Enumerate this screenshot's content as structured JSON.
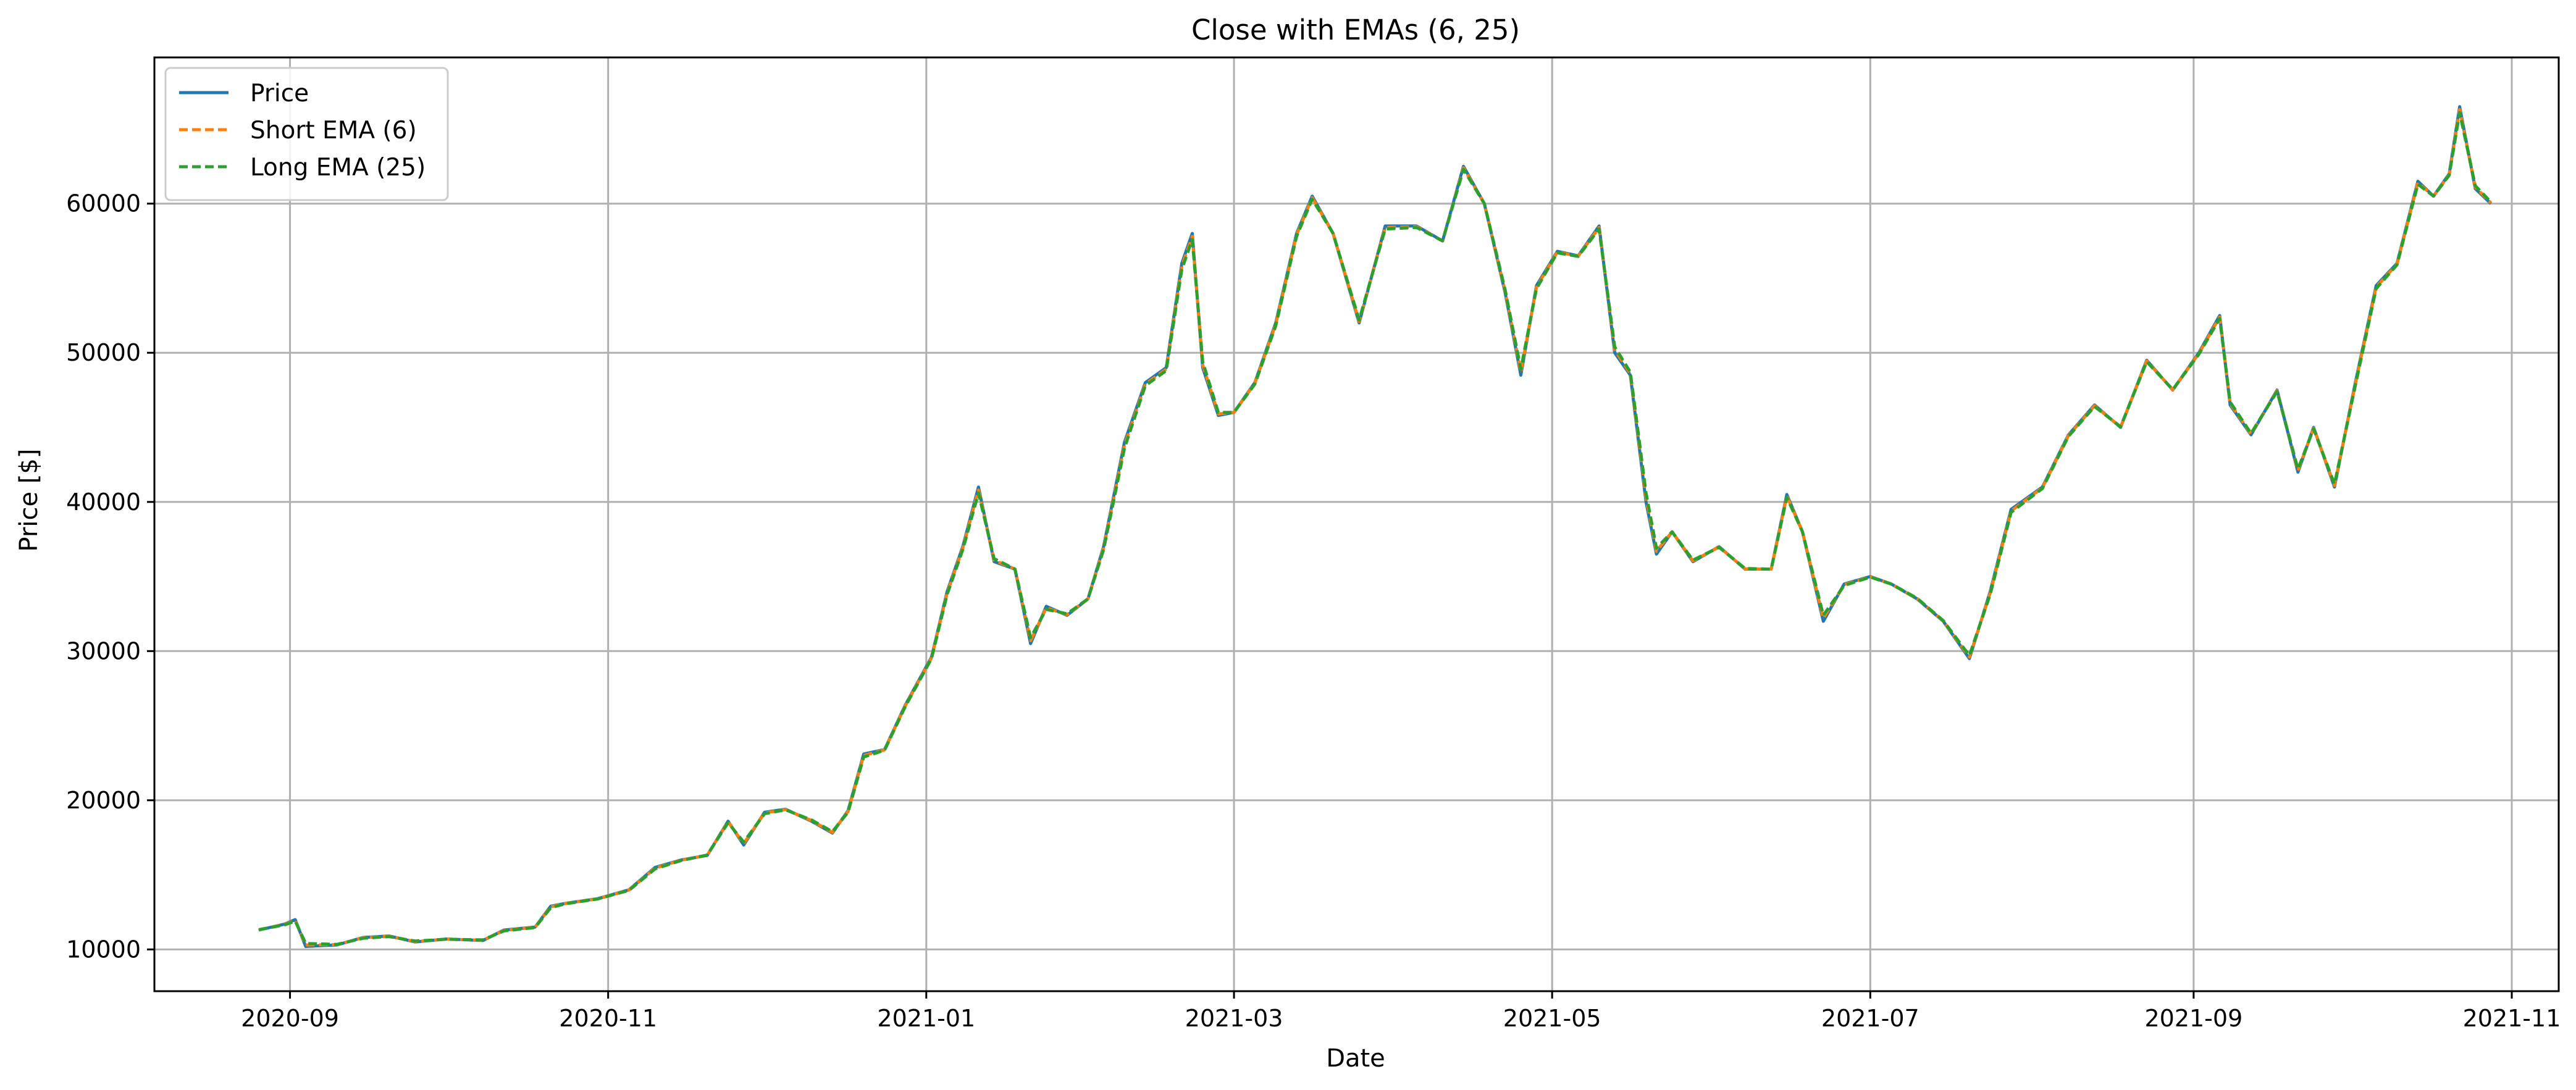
{
  "chart_data": {
    "type": "line",
    "title": "Close with EMAs (6, 25)",
    "xlabel": "Date",
    "ylabel": "Price [$]",
    "x_type": "date",
    "xlim": [
      "2020-08-06",
      "2021-11-10"
    ],
    "ylim": [
      7200,
      69800
    ],
    "xticks": [
      "2020-09-01",
      "2020-11-01",
      "2021-01-01",
      "2021-03-01",
      "2021-05-01",
      "2021-07-01",
      "2021-09-01",
      "2021-11-01"
    ],
    "xtick_labels": [
      "2020-09",
      "2020-11",
      "2021-01",
      "2021-03",
      "2021-05",
      "2021-07",
      "2021-09",
      "2021-11"
    ],
    "yticks": [
      10000,
      20000,
      30000,
      40000,
      50000,
      60000
    ],
    "ytick_labels": [
      "10000",
      "20000",
      "30000",
      "40000",
      "50000",
      "60000"
    ],
    "grid": true,
    "legend_position": "top-left",
    "legend": [
      "Price",
      "Short EMA (6)",
      "Long EMA (25)"
    ],
    "x": [
      "2020-08-26",
      "2020-08-31",
      "2020-09-02",
      "2020-09-04",
      "2020-09-10",
      "2020-09-15",
      "2020-09-20",
      "2020-09-25",
      "2020-10-01",
      "2020-10-08",
      "2020-10-12",
      "2020-10-18",
      "2020-10-21",
      "2020-10-24",
      "2020-10-30",
      "2020-11-05",
      "2020-11-10",
      "2020-11-15",
      "2020-11-20",
      "2020-11-24",
      "2020-11-27",
      "2020-12-01",
      "2020-12-05",
      "2020-12-10",
      "2020-12-14",
      "2020-12-17",
      "2020-12-20",
      "2020-12-24",
      "2020-12-28",
      "2021-01-02",
      "2021-01-05",
      "2021-01-08",
      "2021-01-11",
      "2021-01-14",
      "2021-01-18",
      "2021-01-21",
      "2021-01-24",
      "2021-01-28",
      "2021-02-01",
      "2021-02-04",
      "2021-02-08",
      "2021-02-12",
      "2021-02-16",
      "2021-02-19",
      "2021-02-21",
      "2021-02-23",
      "2021-02-26",
      "2021-03-01",
      "2021-03-05",
      "2021-03-09",
      "2021-03-13",
      "2021-03-16",
      "2021-03-20",
      "2021-03-25",
      "2021-03-30",
      "2021-04-05",
      "2021-04-10",
      "2021-04-14",
      "2021-04-18",
      "2021-04-22",
      "2021-04-25",
      "2021-04-28",
      "2021-05-02",
      "2021-05-06",
      "2021-05-10",
      "2021-05-13",
      "2021-05-16",
      "2021-05-19",
      "2021-05-21",
      "2021-05-24",
      "2021-05-28",
      "2021-06-02",
      "2021-06-07",
      "2021-06-12",
      "2021-06-15",
      "2021-06-18",
      "2021-06-22",
      "2021-06-26",
      "2021-07-01",
      "2021-07-05",
      "2021-07-10",
      "2021-07-15",
      "2021-07-20",
      "2021-07-24",
      "2021-07-28",
      "2021-08-03",
      "2021-08-08",
      "2021-08-13",
      "2021-08-18",
      "2021-08-23",
      "2021-08-28",
      "2021-09-02",
      "2021-09-06",
      "2021-09-08",
      "2021-09-12",
      "2021-09-17",
      "2021-09-21",
      "2021-09-24",
      "2021-09-28",
      "2021-10-02",
      "2021-10-06",
      "2021-10-10",
      "2021-10-14",
      "2021-10-17",
      "2021-10-20",
      "2021-10-22",
      "2021-10-25",
      "2021-10-28"
    ],
    "series": [
      {
        "name": "Price",
        "color": "#1f77b4",
        "style": "solid",
        "values": [
          11300,
          11700,
          12000,
          10200,
          10300,
          10800,
          10900,
          10500,
          10700,
          10600,
          11300,
          11500,
          12900,
          13100,
          13400,
          14000,
          15500,
          16000,
          16300,
          18600,
          17000,
          19200,
          19400,
          18600,
          17800,
          19300,
          23100,
          23400,
          26400,
          29600,
          34000,
          37000,
          41000,
          36000,
          35500,
          30500,
          33000,
          32400,
          33500,
          37000,
          44000,
          48000,
          49000,
          56000,
          58000,
          49000,
          45800,
          46000,
          48000,
          52000,
          58000,
          60500,
          58000,
          52000,
          58500,
          58500,
          57500,
          62500,
          60000,
          54000,
          48500,
          54500,
          56800,
          56500,
          58500,
          50000,
          48500,
          40000,
          36500,
          38000,
          36000,
          37000,
          35500,
          35500,
          40500,
          38000,
          32000,
          34500,
          35000,
          34500,
          33500,
          32000,
          29500,
          34000,
          39500,
          41000,
          44500,
          46500,
          45000,
          49500,
          47500,
          50000,
          52500,
          46500,
          44500,
          47500,
          42000,
          45000,
          41000,
          48000,
          54500,
          56000,
          61500,
          60500,
          62000,
          66500,
          61000,
          60000
        ]
      },
      {
        "name": "Short EMA (6)",
        "color": "#ff7f0e",
        "style": "dashed",
        "values": [
          11310,
          11680,
          11950,
          10300,
          10320,
          10780,
          10880,
          10530,
          10690,
          10620,
          11270,
          11490,
          12850,
          13090,
          13390,
          13980,
          15450,
          15980,
          16320,
          18550,
          17100,
          19150,
          19380,
          18640,
          17850,
          19250,
          23000,
          23380,
          26350,
          29550,
          33900,
          36900,
          40800,
          36100,
          35500,
          30700,
          32900,
          32450,
          33500,
          36900,
          43800,
          47900,
          48900,
          55800,
          57800,
          49200,
          45900,
          46000,
          47950,
          51900,
          57900,
          60400,
          58000,
          52100,
          58400,
          58450,
          57500,
          62400,
          60000,
          54100,
          48700,
          54400,
          56750,
          56480,
          58400,
          50200,
          48600,
          40300,
          36700,
          38000,
          36050,
          36980,
          35520,
          35500,
          40400,
          38000,
          32200,
          34450,
          34980,
          34500,
          33520,
          32020,
          29600,
          33900,
          39400,
          40950,
          44450,
          46450,
          45020,
          49450,
          47520,
          49950,
          52400,
          46600,
          44550,
          47450,
          42100,
          44950,
          41100,
          47900,
          54400,
          55950,
          61400,
          60500,
          61950,
          66300,
          61100,
          60050
        ]
      },
      {
        "name": "Long EMA (25)",
        "color": "#2ca02c",
        "style": "dashed",
        "values": [
          11320,
          11650,
          11900,
          10400,
          10340,
          10750,
          10860,
          10560,
          10680,
          10640,
          11240,
          11470,
          12800,
          13070,
          13380,
          13960,
          15400,
          15960,
          16330,
          18500,
          17200,
          19100,
          19360,
          18680,
          17900,
          19200,
          22900,
          23360,
          26300,
          29500,
          33800,
          36800,
          40600,
          36200,
          35500,
          30900,
          32800,
          32500,
          33500,
          36800,
          43600,
          47800,
          48800,
          55600,
          57600,
          49400,
          46000,
          46000,
          47900,
          51800,
          57800,
          60300,
          58000,
          52200,
          58300,
          58400,
          57500,
          62300,
          60000,
          54200,
          48900,
          54300,
          56700,
          56460,
          58300,
          50400,
          48700,
          40600,
          36900,
          38000,
          36100,
          36960,
          35540,
          35500,
          40300,
          38000,
          32400,
          34400,
          34960,
          34500,
          33540,
          32040,
          29700,
          33800,
          39300,
          40900,
          44400,
          46400,
          45040,
          49400,
          47540,
          49900,
          52300,
          46700,
          44600,
          47400,
          42200,
          44900,
          41200,
          47800,
          54300,
          55900,
          61300,
          60500,
          61900,
          66100,
          61200,
          60100
        ]
      }
    ]
  }
}
